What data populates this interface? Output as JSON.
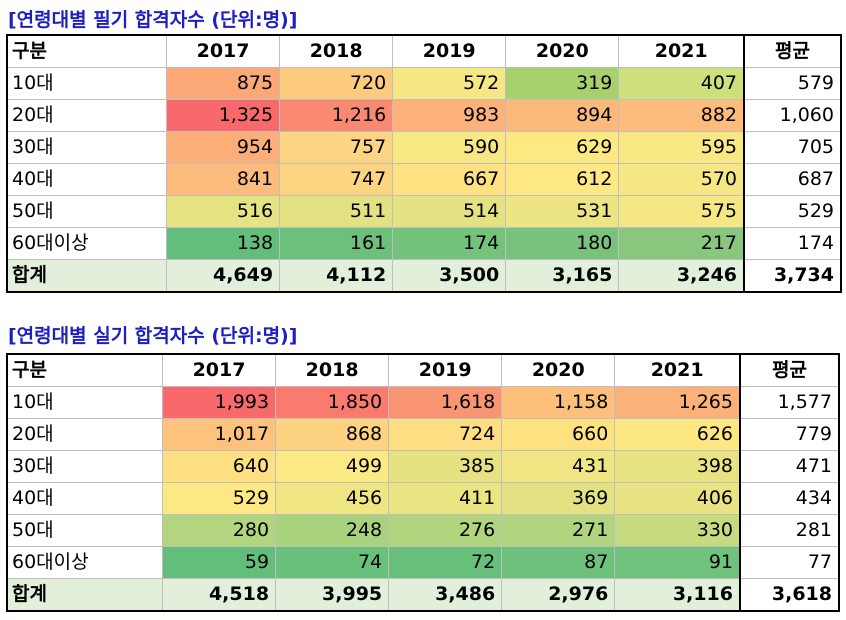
{
  "tables": [
    {
      "title": "[연령대별 필기 합격자수 (단위:명)]",
      "header": [
        "구분",
        "2017",
        "2018",
        "2019",
        "2020",
        "2021",
        "평균"
      ],
      "rows": [
        {
          "label": "10대",
          "values": [
            "875",
            "720",
            "572",
            "319",
            "407"
          ],
          "avg": "579",
          "colors": [
            "#fba876",
            "#fdcb7e",
            "#f5e784",
            "#a6d16c",
            "#cde07b"
          ]
        },
        {
          "label": "20대",
          "values": [
            "1,325",
            "1,216",
            "983",
            "894",
            "882"
          ],
          "avg": "1,060",
          "colors": [
            "#f8696b",
            "#fa8971",
            "#fcb279",
            "#fbba7b",
            "#fdbb7c"
          ]
        },
        {
          "label": "30대",
          "values": [
            "954",
            "757",
            "590",
            "629",
            "595"
          ],
          "avg": "705",
          "colors": [
            "#fcae78",
            "#fdd481",
            "#f7e883",
            "#fde981",
            "#f8e883"
          ]
        },
        {
          "label": "40대",
          "values": [
            "841",
            "747",
            "667",
            "612",
            "570"
          ],
          "avg": "687",
          "colors": [
            "#fdbc7b",
            "#fdd581",
            "#fee180",
            "#fde883",
            "#f4e784"
          ]
        },
        {
          "label": "50대",
          "values": [
            "516",
            "511",
            "514",
            "531",
            "575"
          ],
          "avg": "529",
          "colors": [
            "#e6e382",
            "#e3e282",
            "#e4e282",
            "#ede584",
            "#f5e784"
          ]
        },
        {
          "label": "60대이상",
          "values": [
            "138",
            "161",
            "174",
            "180",
            "217"
          ],
          "avg": "174",
          "colors": [
            "#63be7b",
            "#6dc07c",
            "#74c27c",
            "#78c37c",
            "#88c77d"
          ]
        }
      ],
      "total": {
        "label": "합계",
        "values": [
          "4,649",
          "4,112",
          "3,500",
          "3,165",
          "3,246"
        ],
        "avg": "3,734"
      }
    },
    {
      "title": "[연령대별 실기 합격자수 (단위:명)]",
      "header": [
        "구분",
        "2017",
        "2018",
        "2019",
        "2020",
        "2021",
        "평균"
      ],
      "rows": [
        {
          "label": "10대",
          "values": [
            "1,993",
            "1,850",
            "1,618",
            "1,158",
            "1,265"
          ],
          "avg": "1,577",
          "colors": [
            "#f8696b",
            "#f97a6e",
            "#fa9573",
            "#fcc07c",
            "#fbb27a"
          ]
        },
        {
          "label": "20대",
          "values": [
            "1,017",
            "868",
            "724",
            "660",
            "626"
          ],
          "avg": "779",
          "colors": [
            "#fdc37d",
            "#fdd281",
            "#fede82",
            "#fee282",
            "#fde783"
          ]
        },
        {
          "label": "30대",
          "values": [
            "640",
            "499",
            "385",
            "431",
            "398"
          ],
          "avg": "471",
          "colors": [
            "#fedf82",
            "#fbe983",
            "#e6e282",
            "#efe583",
            "#e8e382"
          ]
        },
        {
          "label": "40대",
          "values": [
            "529",
            "456",
            "411",
            "369",
            "406"
          ],
          "avg": "434",
          "colors": [
            "#fde983",
            "#f0e583",
            "#ebe482",
            "#e2e282",
            "#eae383"
          ]
        },
        {
          "label": "50대",
          "values": [
            "280",
            "248",
            "276",
            "271",
            "330"
          ],
          "avg": "281",
          "colors": [
            "#b3d57f",
            "#a9d27f",
            "#b1d47f",
            "#b0d47f",
            "#c6db80"
          ]
        },
        {
          "label": "60대이상",
          "values": [
            "59",
            "74",
            "72",
            "87",
            "91"
          ],
          "avg": "77",
          "colors": [
            "#63be7b",
            "#69c07b",
            "#68bf7b",
            "#6ec17c",
            "#70c27c"
          ]
        }
      ],
      "total": {
        "label": "합계",
        "values": [
          "4,518",
          "3,995",
          "3,486",
          "2,976",
          "3,116"
        ],
        "avg": "3,618"
      }
    }
  ]
}
